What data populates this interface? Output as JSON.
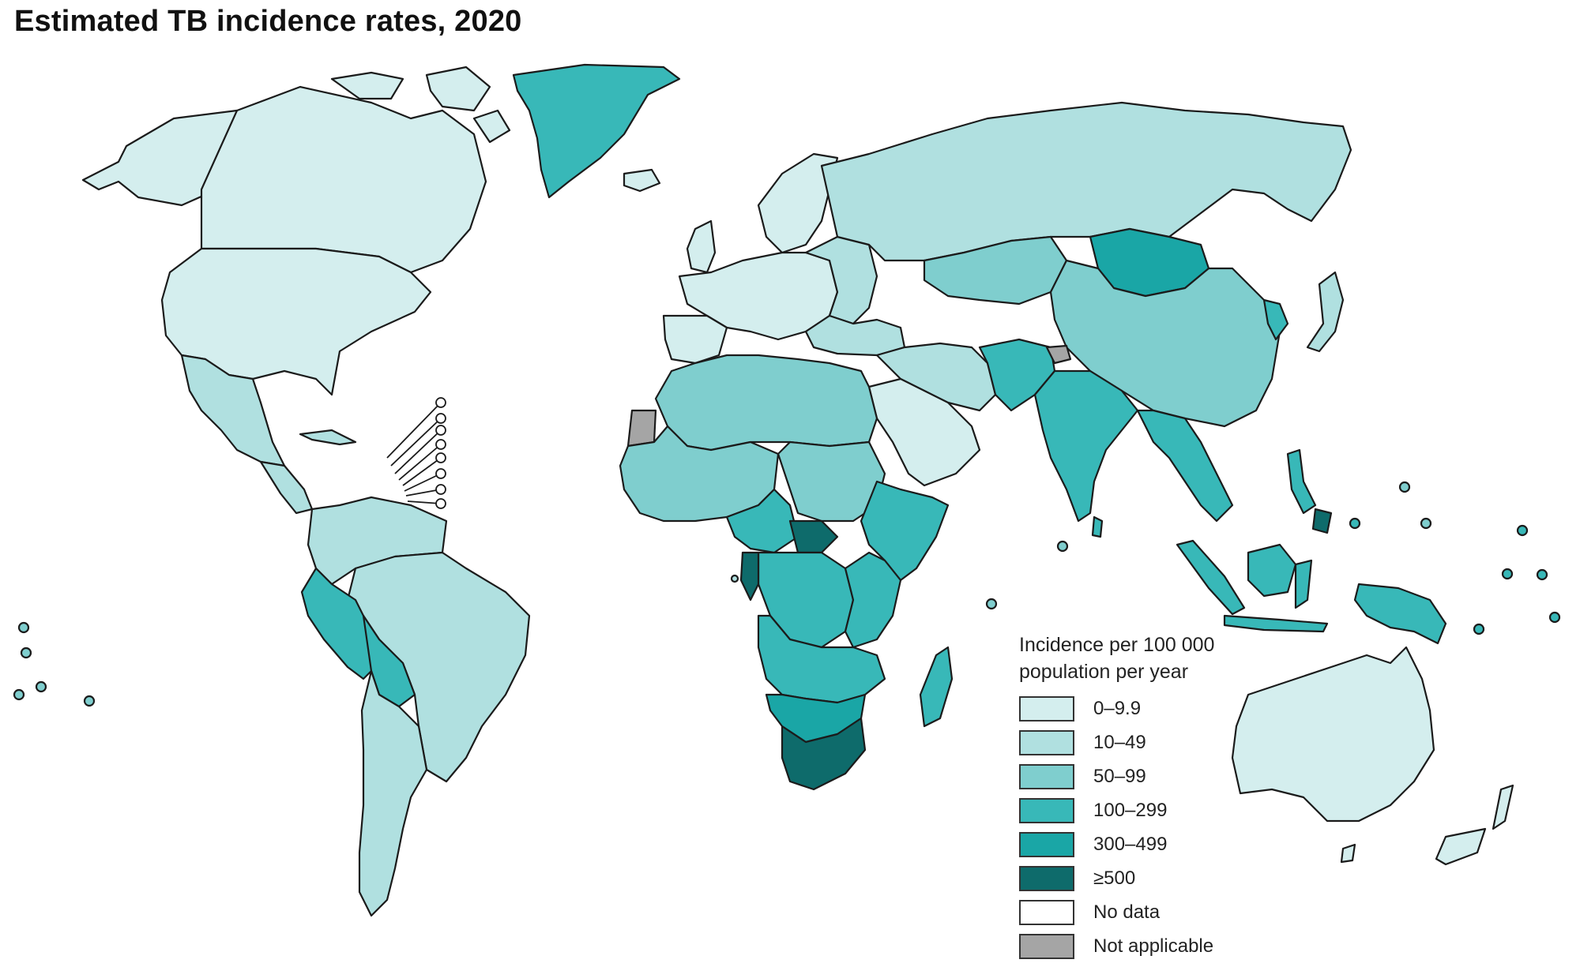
{
  "title": "Estimated TB incidence rates, 2020",
  "legend": {
    "title_line1": "Incidence per 100 000",
    "title_line2": "population per year",
    "items": [
      {
        "label": "0–9.9",
        "color": "#d4eeee"
      },
      {
        "label": "10–49",
        "color": "#b0e0e0"
      },
      {
        "label": "50–99",
        "color": "#7fcece"
      },
      {
        "label": "100–299",
        "color": "#38b8b8"
      },
      {
        "label": "300–499",
        "color": "#1aa6a6"
      },
      {
        "label": "≥500",
        "color": "#0e6b6b"
      },
      {
        "label": "No data",
        "color": "#ffffff"
      },
      {
        "label": "Not applicable",
        "color": "#a5a5a5"
      }
    ]
  }
}
